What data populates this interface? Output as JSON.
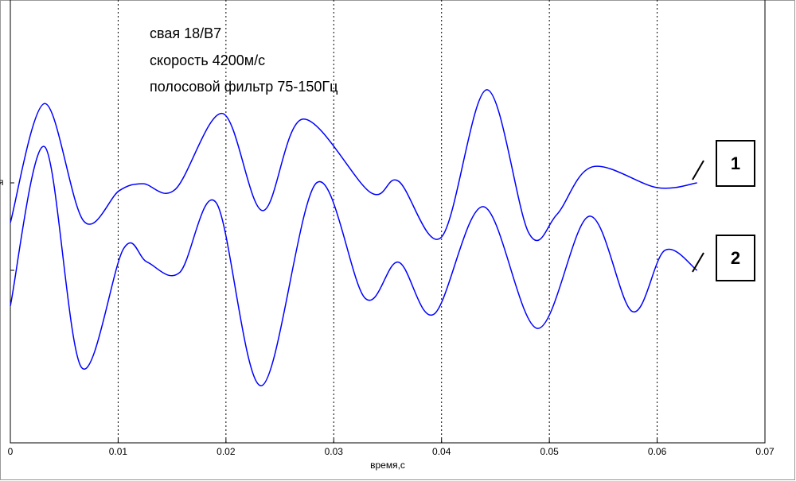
{
  "chart_data": {
    "type": "line",
    "annotations": [
      "свая 18/B7",
      "скорость 4200м/с",
      "полосовой фильтр 75-150Гц"
    ],
    "xlabel": "время,с",
    "ylabel_fragment": "я",
    "xlim": [
      0,
      0.07
    ],
    "xticks": [
      0,
      0.01,
      0.02,
      0.03,
      0.04,
      0.05,
      0.06,
      0.07
    ],
    "ylim": [
      0,
      100
    ],
    "grid": true,
    "series": [
      {
        "name": "1",
        "color": "#0000ff",
        "x": [
          0,
          0.0032,
          0.0068,
          0.0101,
          0.0123,
          0.0153,
          0.0197,
          0.0234,
          0.0271,
          0.0334,
          0.036,
          0.04,
          0.0442,
          0.0481,
          0.0507,
          0.054,
          0.06,
          0.0637
        ],
        "values": [
          50.8,
          78.3,
          51.2,
          58.2,
          59.8,
          58.5,
          76.0,
          53.6,
          74.7,
          57.8,
          60.4,
          47.5,
          81.5,
          48.4,
          52.7,
          63.7,
          58.9,
          60.0
        ]
      },
      {
        "name": "2",
        "color": "#0000ff",
        "x": [
          0,
          0.0032,
          0.0066,
          0.0105,
          0.0127,
          0.0157,
          0.0191,
          0.0233,
          0.0284,
          0.0329,
          0.036,
          0.0393,
          0.0439,
          0.0489,
          0.0537,
          0.0577,
          0.0607,
          0.0637
        ],
        "values": [
          31.6,
          68.3,
          17.4,
          44.8,
          41.7,
          39.3,
          55.4,
          13.2,
          60.0,
          33.4,
          41.7,
          29.7,
          54.5,
          26.4,
          52.3,
          30.3,
          44.4,
          39.8
        ]
      }
    ]
  }
}
